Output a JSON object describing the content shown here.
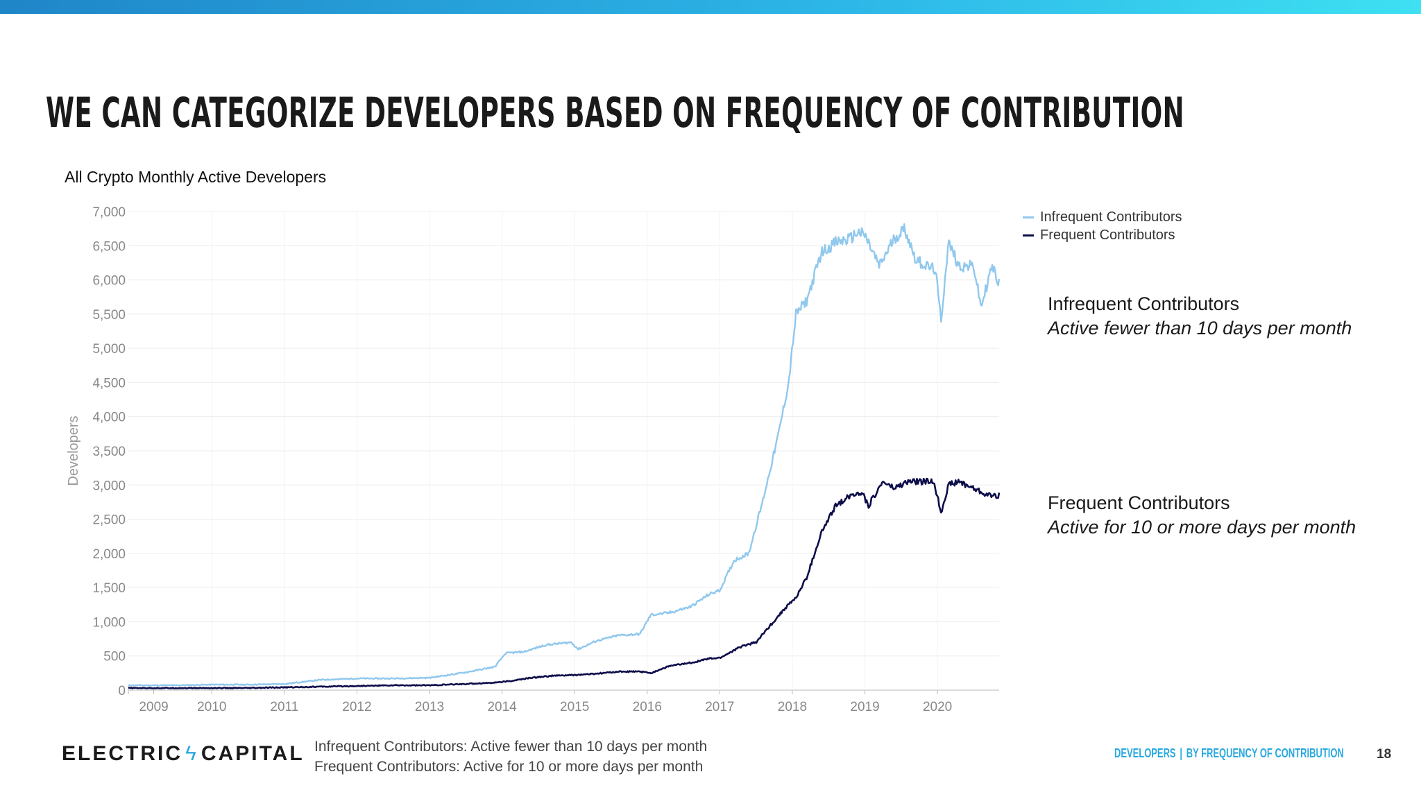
{
  "slide": {
    "title": "WE CAN CATEGORIZE DEVELOPERS BASED ON FREQUENCY OF CONTRIBUTION",
    "accent_color": "#2aa9e0"
  },
  "annotations": [
    {
      "title": "Infrequent Contributors",
      "subtitle": "Active fewer than 10 days per month"
    },
    {
      "title": "Frequent Contributors",
      "subtitle": "Active for 10 or more days per month"
    }
  ],
  "footer": {
    "logo_left": "ELECTRIC",
    "logo_right": "CAPITAL",
    "footnote_1": "Infrequent Contributors: Active fewer than 10 days per month",
    "footnote_2": "Frequent Contributors: Active for 10 or more days per month",
    "nav_section": "DEVELOPERS",
    "nav_page": "BY FREQUENCY OF CONTRIBUTION",
    "page_number": "18"
  },
  "chart_data": {
    "type": "line",
    "title": "All Crypto Monthly Active Developers",
    "ylabel": "Developers",
    "xlabel": "",
    "xlim": [
      2008.85,
      2020.85
    ],
    "ylim": [
      0,
      7000
    ],
    "yticks": [
      0,
      500,
      1000,
      1500,
      2000,
      2500,
      3000,
      3500,
      4000,
      4500,
      5000,
      5500,
      6000,
      6500,
      7000
    ],
    "ytick_labels": [
      "0",
      "500",
      "1,000",
      "1,500",
      "2,000",
      "2,500",
      "3,000",
      "3,500",
      "4,000",
      "4,500",
      "5,000",
      "5,500",
      "6,000",
      "6,500",
      "7,000"
    ],
    "xticks": [
      2009.2,
      2010,
      2011,
      2012,
      2013,
      2014,
      2015,
      2016,
      2017,
      2018,
      2019,
      2020
    ],
    "xtick_labels": [
      "2009",
      "2010",
      "2011",
      "2012",
      "2013",
      "2014",
      "2015",
      "2016",
      "2017",
      "2018",
      "2019",
      "2020"
    ],
    "grid": true,
    "legend": "top-right",
    "series": [
      {
        "name": "Infrequent Contributors",
        "color": "#90c8ee",
        "x": [
          2008.85,
          2009.5,
          2010.0,
          2010.5,
          2011.0,
          2011.5,
          2012.0,
          2012.5,
          2013.0,
          2013.5,
          2013.9,
          2014.05,
          2014.3,
          2014.6,
          2014.95,
          2015.05,
          2015.3,
          2015.6,
          2015.9,
          2016.05,
          2016.3,
          2016.6,
          2016.85,
          2017.0,
          2017.2,
          2017.4,
          2017.6,
          2017.8,
          2017.95,
          2018.05,
          2018.2,
          2018.4,
          2018.6,
          2018.8,
          2018.9,
          2019.0,
          2019.2,
          2019.4,
          2019.55,
          2019.7,
          2019.85,
          2019.97,
          2020.05,
          2020.15,
          2020.3,
          2020.5,
          2020.6,
          2020.75,
          2020.85
        ],
        "y": [
          70,
          70,
          80,
          80,
          90,
          150,
          170,
          170,
          180,
          260,
          340,
          540,
          560,
          660,
          700,
          600,
          720,
          800,
          820,
          1100,
          1130,
          1220,
          1400,
          1460,
          1900,
          2000,
          2800,
          3700,
          4500,
          5500,
          5700,
          6400,
          6550,
          6600,
          6700,
          6650,
          6200,
          6600,
          6750,
          6300,
          6200,
          6150,
          5400,
          6550,
          6200,
          6200,
          5600,
          6200,
          5950
        ]
      },
      {
        "name": "Frequent Contributors",
        "color": "#0d0d4a",
        "x": [
          2008.85,
          2009.5,
          2010.0,
          2010.5,
          2011.0,
          2011.5,
          2012.0,
          2012.5,
          2013.0,
          2013.5,
          2013.9,
          2014.1,
          2014.4,
          2014.7,
          2015.0,
          2015.3,
          2015.6,
          2015.9,
          2016.05,
          2016.3,
          2016.6,
          2016.85,
          2017.0,
          2017.3,
          2017.5,
          2017.7,
          2017.9,
          2018.05,
          2018.2,
          2018.4,
          2018.6,
          2018.8,
          2018.95,
          2019.05,
          2019.25,
          2019.4,
          2019.6,
          2019.8,
          2019.95,
          2020.05,
          2020.15,
          2020.3,
          2020.5,
          2020.7,
          2020.85
        ],
        "y": [
          30,
          30,
          30,
          30,
          40,
          50,
          60,
          70,
          70,
          90,
          110,
          130,
          180,
          210,
          220,
          240,
          270,
          270,
          250,
          350,
          400,
          460,
          470,
          640,
          700,
          950,
          1200,
          1350,
          1650,
          2300,
          2700,
          2850,
          2900,
          2700,
          3050,
          2950,
          3050,
          3050,
          3050,
          2600,
          3000,
          3050,
          2950,
          2850,
          2850
        ]
      }
    ]
  }
}
